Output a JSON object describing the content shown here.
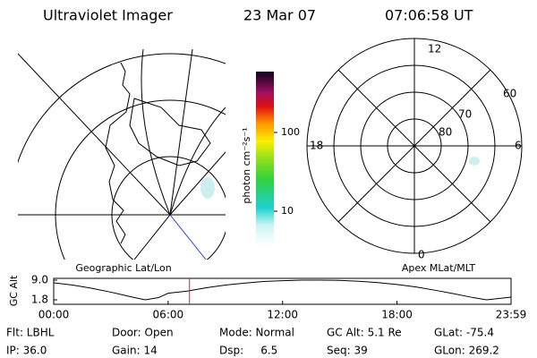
{
  "header": {
    "instrument": "Ultraviolet Imager",
    "date": "23 Mar 07",
    "time": "07:06:58 UT"
  },
  "colorbar": {
    "label": "photon cm⁻²s⁻¹",
    "ticks": [
      "100",
      "10"
    ]
  },
  "polar": {
    "labels": {
      "top": "12",
      "left": "18",
      "right": "6",
      "bottom": "0"
    },
    "rings": [
      "60",
      "70",
      "80"
    ]
  },
  "chart_data": {
    "type": "line",
    "ylabel": "GC Alt",
    "left_label": "Geographic Lat/Lon",
    "right_label": "Apex MLat/MLT",
    "x": [
      0,
      1,
      2,
      3,
      4,
      4.8,
      5.5,
      6,
      7,
      8,
      9,
      10,
      11,
      12,
      13,
      14,
      15,
      16,
      17,
      18,
      19,
      20,
      21,
      22,
      22.7,
      23.98
    ],
    "series": [
      {
        "name": "GC Alt",
        "color": "#000000",
        "values": [
          8.0,
          7.2,
          6.0,
          4.6,
          3.0,
          1.8,
          2.6,
          4.2,
          5.0,
          6.2,
          7.2,
          7.9,
          8.5,
          8.8,
          9.0,
          9.0,
          8.9,
          8.6,
          8.1,
          7.4,
          6.5,
          5.3,
          4.0,
          2.6,
          1.8,
          2.8
        ]
      }
    ],
    "marker_x": 7.12,
    "marker_color": "#dd2222",
    "xlim": [
      0,
      23.98
    ],
    "xticks": [
      {
        "value": 0,
        "label": "00:00"
      },
      {
        "value": 6,
        "label": "06:00"
      },
      {
        "value": 12,
        "label": "12:00"
      },
      {
        "value": 18,
        "label": "18:00"
      },
      {
        "value": 23.98,
        "label": "23:59"
      }
    ],
    "ylim": [
      1.8,
      9.0
    ],
    "yticks": [
      1.8,
      {
        "value": 9.0,
        "label": "9.0"
      }
    ]
  },
  "footer": {
    "rows": [
      [
        "Flt: LBHL",
        "Door: Open",
        "Mode: Normal",
        "GC Alt: 5.1 Re",
        "GLat: -75.4"
      ],
      [
        "IP: 36.0",
        "Gain: 14",
        "Dsp:     6.5",
        "Seq: 39",
        "GLon: 269.2"
      ]
    ]
  }
}
